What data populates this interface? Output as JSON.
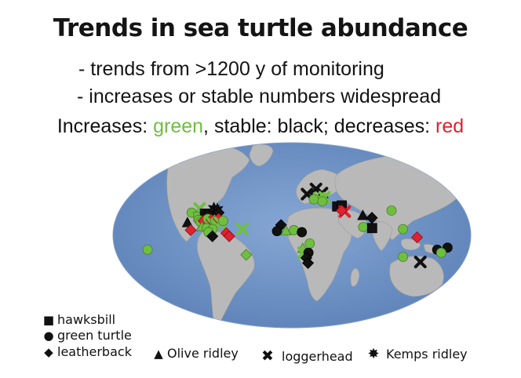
{
  "title": "Trends in sea turtle abundance",
  "bullets": [
    "- trends from >1200 y of monitoring",
    "- increases or stable numbers widespread"
  ],
  "trend_key": {
    "prefix": "Increases: ",
    "increase_word": "green",
    "mid1": ", stable: black; decreases: ",
    "decrease_word": "red",
    "colors": {
      "increase": "#6fbf3f",
      "stable": "#111111",
      "decrease": "#e0212e"
    }
  },
  "species_legend": [
    {
      "shape": "square",
      "label": "hawksbill"
    },
    {
      "shape": "circle",
      "label": "green turtle"
    },
    {
      "shape": "diamond",
      "label": "leatherback"
    },
    {
      "shape": "triangle",
      "label": "Olive ridley"
    },
    {
      "shape": "cross",
      "label": "loggerhead"
    },
    {
      "shape": "star",
      "label": "Kemps ridley"
    }
  ],
  "map_colors": {
    "ocean": "#6f93c4",
    "land": "#b9b9b9"
  },
  "markers": [
    {
      "s": "cross",
      "t": "g",
      "lon": -97,
      "lat": 26
    },
    {
      "s": "circle",
      "t": "g",
      "lon": -104,
      "lat": 22
    },
    {
      "s": "square",
      "t": "g",
      "lon": -96,
      "lat": 18
    },
    {
      "s": "square",
      "t": "s",
      "lon": -90,
      "lat": 21
    },
    {
      "s": "circle",
      "t": "s",
      "lon": -86,
      "lat": 21
    },
    {
      "s": "star",
      "t": "s",
      "lon": -82,
      "lat": 26
    },
    {
      "s": "star",
      "t": "s",
      "lon": -78,
      "lat": 25
    },
    {
      "s": "diamond",
      "t": "s",
      "lon": -76,
      "lat": 22
    },
    {
      "s": "circle",
      "t": "g",
      "lon": -95,
      "lat": 15
    },
    {
      "s": "circle",
      "t": "g",
      "lon": -93,
      "lat": 13
    },
    {
      "s": "diamond",
      "t": "d",
      "lon": -90,
      "lat": 14
    },
    {
      "s": "circle",
      "t": "g",
      "lon": -86,
      "lat": 16
    },
    {
      "s": "diamond",
      "t": "d",
      "lon": -82,
      "lat": 15
    },
    {
      "s": "cross",
      "t": "g",
      "lon": -80,
      "lat": 11
    },
    {
      "s": "circle",
      "t": "g",
      "lon": -78,
      "lat": 14
    },
    {
      "s": "diamond",
      "t": "d",
      "lon": -75,
      "lat": 16
    },
    {
      "s": "cross",
      "t": "g",
      "lon": -73,
      "lat": 12
    },
    {
      "s": "circle",
      "t": "g",
      "lon": -70,
      "lat": 14
    },
    {
      "s": "triangle",
      "t": "s",
      "lon": -106,
      "lat": 12
    },
    {
      "s": "diamond",
      "t": "d",
      "lon": -102,
      "lat": 5
    },
    {
      "s": "triangle",
      "t": "g",
      "lon": -91,
      "lat": 8
    },
    {
      "s": "circle",
      "t": "g",
      "lon": -86,
      "lat": 7
    },
    {
      "s": "circle",
      "t": "g",
      "lon": -80,
      "lat": 6
    },
    {
      "s": "circle",
      "t": "g",
      "lon": -84,
      "lat": 3
    },
    {
      "s": "diamond",
      "t": "s",
      "lon": -80,
      "lat": -1
    },
    {
      "s": "diamond",
      "t": "d",
      "lon": -66,
      "lat": 2
    },
    {
      "s": "diamond",
      "t": "d",
      "lon": -63,
      "lat": -1
    },
    {
      "s": "cross",
      "t": "g",
      "lon": -50,
      "lat": 6
    },
    {
      "s": "diamond",
      "t": "g",
      "lon": -47,
      "lat": -19
    },
    {
      "s": "circle",
      "t": "g",
      "lon": -147,
      "lat": -14
    },
    {
      "s": "cross",
      "t": "s",
      "lon": 17,
      "lat": 40
    },
    {
      "s": "cross",
      "t": "s",
      "lon": 28,
      "lat": 45
    },
    {
      "s": "cross",
      "t": "s",
      "lon": 34,
      "lat": 41
    },
    {
      "s": "cross",
      "t": "g",
      "lon": 30,
      "lat": 36
    },
    {
      "s": "cross",
      "t": "g",
      "lon": 36,
      "lat": 37
    },
    {
      "s": "circle",
      "t": "g",
      "lon": 24,
      "lat": 35
    },
    {
      "s": "circle",
      "t": "g",
      "lon": 33,
      "lat": 33
    },
    {
      "s": "square",
      "t": "s",
      "lon": 48,
      "lat": 28
    },
    {
      "s": "square",
      "t": "s",
      "lon": 53,
      "lat": 29
    },
    {
      "s": "cross",
      "t": "d",
      "lon": 55,
      "lat": 23
    },
    {
      "s": "diamond",
      "t": "d",
      "lon": 52,
      "lat": 24
    },
    {
      "s": "triangle",
      "t": "s",
      "lon": 73,
      "lat": 19
    },
    {
      "s": "diamond",
      "t": "s",
      "lon": 82,
      "lat": 17
    },
    {
      "s": "circle",
      "t": "g",
      "lon": 72,
      "lat": 8
    },
    {
      "s": "square",
      "t": "s",
      "lon": 81,
      "lat": 7
    },
    {
      "s": "circle",
      "t": "g",
      "lon": 104,
      "lat": 24
    },
    {
      "s": "circle",
      "t": "g",
      "lon": 112,
      "lat": 6
    },
    {
      "s": "diamond",
      "t": "d",
      "lon": 126,
      "lat": -2
    },
    {
      "s": "diamond",
      "t": "s",
      "lon": -11,
      "lat": 10
    },
    {
      "s": "circle",
      "t": "s",
      "lon": -15,
      "lat": 4
    },
    {
      "s": "triangle",
      "t": "g",
      "lon": -6,
      "lat": 4
    },
    {
      "s": "circle",
      "t": "g",
      "lon": 2,
      "lat": 5
    },
    {
      "s": "circle",
      "t": "s",
      "lon": 10,
      "lat": 3
    },
    {
      "s": "circle",
      "t": "g",
      "lon": 18,
      "lat": -8
    },
    {
      "s": "triangle",
      "t": "g",
      "lon": 11,
      "lat": -13
    },
    {
      "s": "cross",
      "t": "g",
      "lon": 12,
      "lat": -17
    },
    {
      "s": "circle",
      "t": "s",
      "lon": 17,
      "lat": -17
    },
    {
      "s": "diamond",
      "t": "s",
      "lon": 15,
      "lat": -22
    },
    {
      "s": "diamond",
      "t": "s",
      "lon": 17,
      "lat": -27
    },
    {
      "s": "cross",
      "t": "s",
      "lon": 135,
      "lat": -26
    },
    {
      "s": "circle",
      "t": "s",
      "lon": 158,
      "lat": -12
    },
    {
      "s": "circle",
      "t": "s",
      "lon": 148,
      "lat": -14
    },
    {
      "s": "circle",
      "t": "g",
      "lon": 153,
      "lat": -17
    },
    {
      "s": "circle",
      "t": "g",
      "lon": 115,
      "lat": -21
    }
  ]
}
